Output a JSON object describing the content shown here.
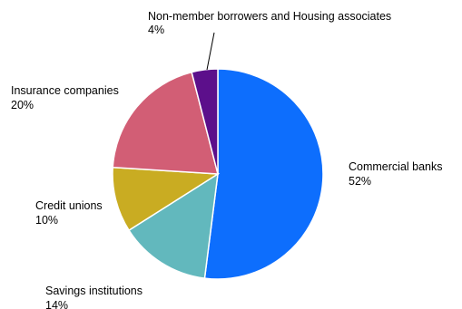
{
  "chart_data": {
    "type": "pie",
    "title": "",
    "slices": [
      {
        "label": "Commercial banks",
        "value": 52,
        "value_label": "52%",
        "color": "#0d6efd"
      },
      {
        "label": "Savings institutions",
        "value": 14,
        "value_label": "14%",
        "color": "#62b8bd"
      },
      {
        "label": "Credit unions",
        "value": 10,
        "value_label": "10%",
        "color": "#c9ac22"
      },
      {
        "label": "Insurance companies",
        "value": 20,
        "value_label": "20%",
        "color": "#d25e75"
      },
      {
        "label": "Non-member borrowers and Housing associates",
        "value": 4,
        "value_label": "4%",
        "color": "#5c0f8b"
      }
    ]
  }
}
